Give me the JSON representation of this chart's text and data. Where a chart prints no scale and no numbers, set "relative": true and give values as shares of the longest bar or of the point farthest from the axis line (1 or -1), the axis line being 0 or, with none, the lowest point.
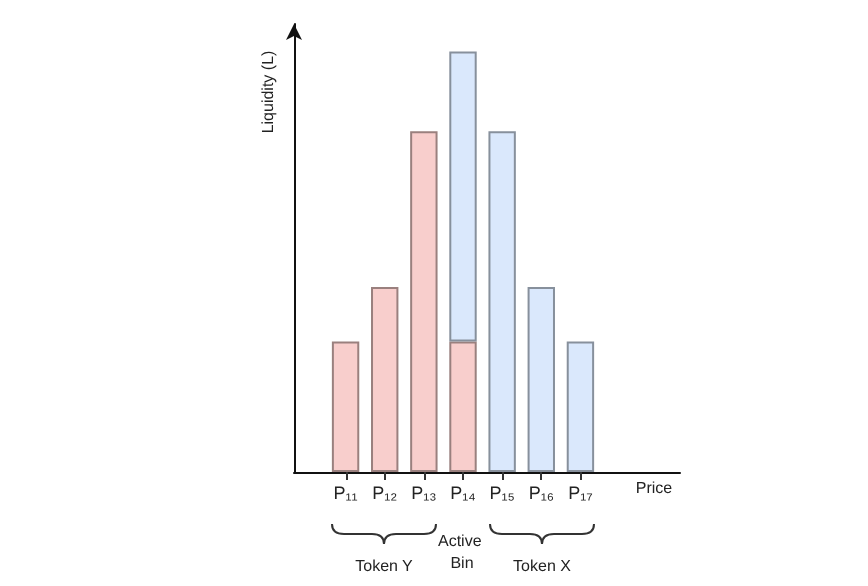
{
  "chart_data": {
    "type": "bar",
    "relative": true,
    "stacked": true,
    "xlabel": "Price",
    "ylabel": "Liquidity (L)",
    "categories": [
      "P₁₁",
      "P₁₂",
      "P₁₃",
      "P₁₄",
      "P₁₅",
      "P₁₆",
      "P₁₇"
    ],
    "series": [
      {
        "color": "#f8cecc",
        "values": [
          0.31,
          0.44,
          0.81,
          0.31,
          null,
          null,
          null
        ]
      },
      {
        "color": "#dae8fc",
        "values": [
          null,
          null,
          null,
          0.69,
          0.81,
          0.44,
          0.31
        ]
      }
    ],
    "annotations": [
      "Token Y",
      "Active Bin",
      "Token X"
    ],
    "grid": false
  }
}
